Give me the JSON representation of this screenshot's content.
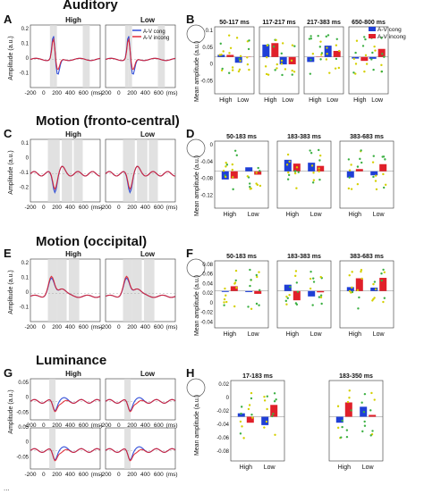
{
  "sections": [
    {
      "title": "Auditory",
      "letters": [
        "A",
        "B"
      ],
      "conditions": [
        "High",
        "Low"
      ],
      "legend": [
        "A-V cong",
        "A-V incong"
      ],
      "windows": [
        "50-117 ms",
        "117-217 ms",
        "217-383 ms",
        "650-800 ms"
      ]
    },
    {
      "title": "Motion (fronto-central)",
      "letters": [
        "C",
        "D"
      ],
      "conditions": [
        "High",
        "Low"
      ],
      "windows": [
        "50-183 ms",
        "183-383 ms",
        "383-683 ms"
      ]
    },
    {
      "title": "Motion (occipital)",
      "letters": [
        "E",
        "F"
      ],
      "conditions": [
        "High",
        "Low"
      ],
      "windows": [
        "50-183 ms",
        "183-383 ms",
        "383-683 ms"
      ]
    },
    {
      "title": "Luminance",
      "letters": [
        "G",
        "H"
      ],
      "conditions": [
        "High",
        "Low"
      ],
      "windows": [
        "17-183 ms",
        "183-350 ms"
      ]
    }
  ],
  "axes": {
    "amplitude": "Amplitude (a.u.)",
    "mean_amplitude": "Mean amplitude (a.u.)",
    "mean_amplitude_lower": "mean amplitude (a.u.)",
    "time_ticks": [
      "-200",
      "0",
      "200",
      "400",
      "600",
      "(ms)"
    ],
    "erp_y_ticks": {
      "A": [
        "0.2",
        "0.1",
        "0",
        "-0.1"
      ],
      "C": [
        "0.1",
        "0",
        "-0.1",
        "-0.2"
      ],
      "E": [
        "0.2",
        "0.1",
        "0",
        "-0.1"
      ],
      "G": [
        "0.05",
        "0",
        "-0.05",
        "0.05",
        "0",
        "-0.05"
      ]
    },
    "bar_y_ticks": {
      "B": [
        "0.1",
        "0.05",
        "0",
        "-0.05"
      ],
      "D": [
        "0",
        "-0.04",
        "-0.08",
        "-0.12"
      ],
      "F": [
        "0.08",
        "0.06",
        "0.04",
        "0.02",
        "0",
        "-0.02",
        "-0.04"
      ],
      "H": [
        "0.02",
        "0",
        "-0.02",
        "-0.04",
        "-0.06",
        "-0.08"
      ],
      "H2": [
        "0.06",
        "0.04",
        "0.02",
        "0",
        "-0.02"
      ]
    }
  },
  "colors": {
    "cong": "#1f3fd6",
    "incong": "#e0202a",
    "shade": "#d9d9d9",
    "dots_green": "#3cb043",
    "dots_yellow": "#d4d000"
  },
  "caption": "..."
}
